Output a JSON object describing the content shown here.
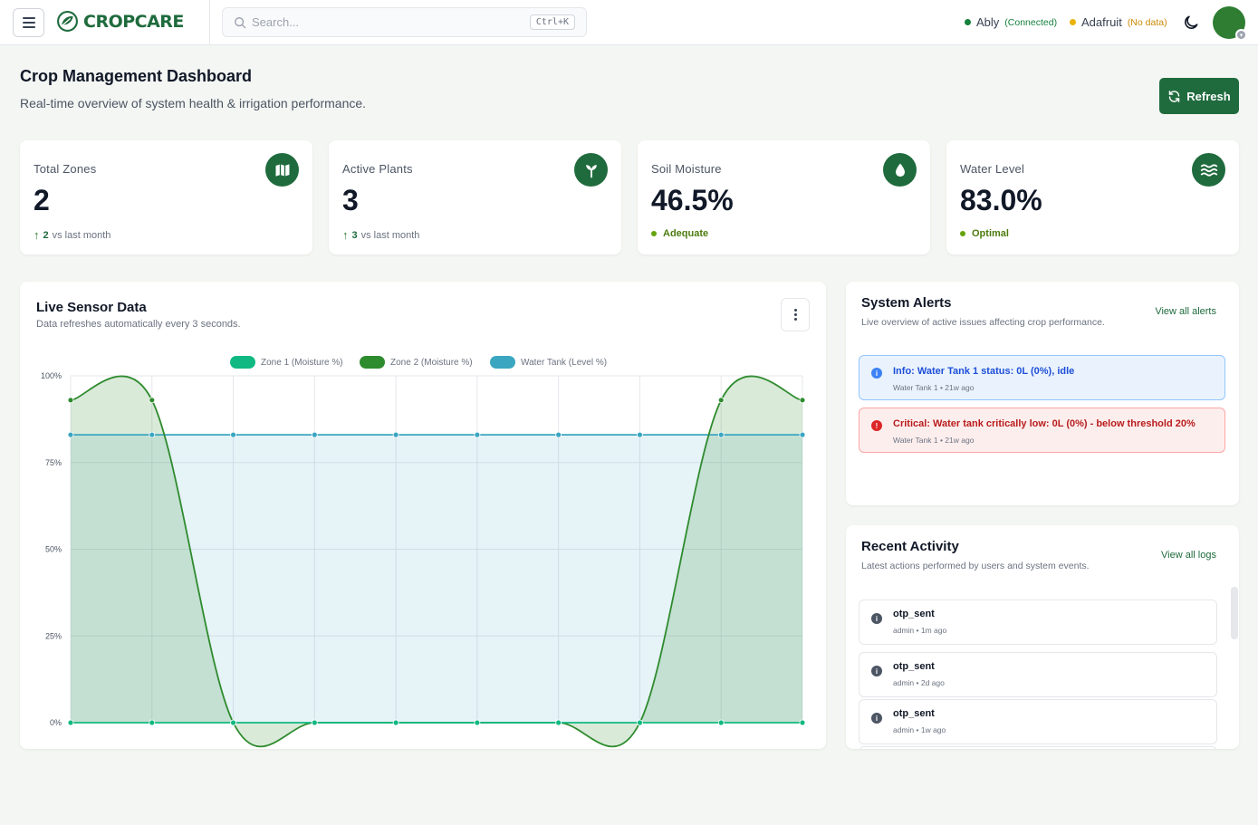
{
  "brand": {
    "name": "CROPCARE"
  },
  "search": {
    "placeholder": "Search...",
    "shortcut": "Ctrl+K"
  },
  "connections": [
    {
      "name": "Ably",
      "status": "(Connected)",
      "color": "#15803d"
    },
    {
      "name": "Adafruit",
      "status": "(No data)",
      "color": "#eab308"
    }
  ],
  "header": {
    "title": "Crop Management Dashboard",
    "subtitle": "Real-time overview of system health & irrigation performance.",
    "refresh_label": "Refresh"
  },
  "stats": [
    {
      "label": "Total Zones",
      "value": "2",
      "delta": "2",
      "delta_text": "vs last month",
      "icon": "map-icon"
    },
    {
      "label": "Active Plants",
      "value": "3",
      "delta": "3",
      "delta_text": "vs last month",
      "icon": "sprout-icon"
    },
    {
      "label": "Soil Moisture",
      "value": "46.5%",
      "status": "Adequate",
      "icon": "droplet-icon"
    },
    {
      "label": "Water Level",
      "value": "83.0%",
      "status": "Optimal",
      "icon": "waves-icon"
    }
  ],
  "sensor": {
    "title": "Live Sensor Data",
    "subtitle": "Data refreshes automatically every 3 seconds."
  },
  "chart_data": {
    "type": "area",
    "x": [
      1,
      2,
      3,
      4,
      5,
      6,
      7,
      8,
      9,
      10
    ],
    "ylim": [
      0,
      100
    ],
    "yticks": [
      "0%",
      "25%",
      "50%",
      "75%",
      "100%"
    ],
    "grid": true,
    "legend_position": "top-center",
    "series": [
      {
        "name": "Zone 1 (Moisture %)",
        "color": "#10b981",
        "values": [
          0,
          0,
          0,
          0,
          0,
          0,
          0,
          0,
          0,
          0
        ]
      },
      {
        "name": "Zone 2 (Moisture %)",
        "color": "#2e8b2e",
        "values": [
          93,
          93,
          0,
          0,
          0,
          0,
          0,
          0,
          93,
          93
        ]
      },
      {
        "name": "Water Tank (Level %)",
        "color": "#3aa6c0",
        "values": [
          83,
          83,
          83,
          83,
          83,
          83,
          83,
          83,
          83,
          83
        ]
      }
    ]
  },
  "alerts": {
    "title": "System Alerts",
    "subtitle": "Live overview of active issues affecting crop performance.",
    "link": "View all alerts",
    "items": [
      {
        "type": "info",
        "icon_glyph": "i",
        "title": "Info: Water Tank 1 status: 0L (0%), idle",
        "meta": "Water Tank 1 • 21w ago"
      },
      {
        "type": "crit",
        "icon_glyph": "!",
        "title": "Critical: Water tank critically low: 0L (0%) - below threshold 20%",
        "meta": "Water Tank 1 • 21w ago"
      }
    ]
  },
  "activity": {
    "title": "Recent Activity",
    "subtitle": "Latest actions performed by users and system events.",
    "link": "View all logs",
    "items": [
      {
        "icon_glyph": "i",
        "title": "otp_sent",
        "meta": "admin • 1m ago"
      },
      {
        "icon_glyph": "i",
        "title": "otp_sent",
        "meta": "admin • 2d ago"
      },
      {
        "icon_glyph": "i",
        "title": "otp_sent",
        "meta": "admin • 1w ago"
      }
    ]
  }
}
